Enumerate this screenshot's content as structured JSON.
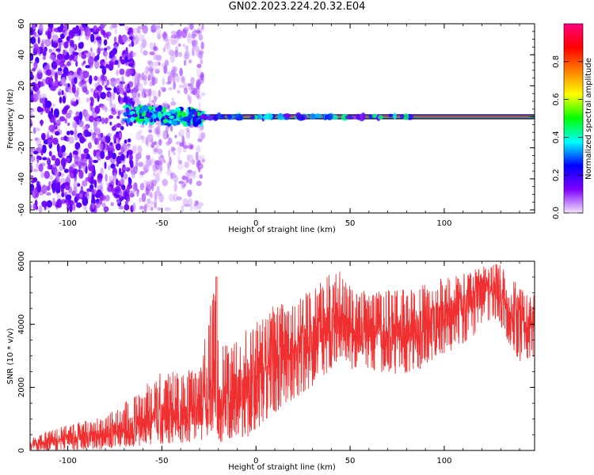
{
  "title": "GN02.2023.224.20.32.E04",
  "colors": {
    "snr_line": "#f03030",
    "colorbar_stops": [
      "#f2e6fb",
      "#7f00ff",
      "#0000ff",
      "#00ffff",
      "#00ff00",
      "#ffff00",
      "#ff8000",
      "#ff0000",
      "#ff0080"
    ]
  },
  "chart_data": [
    {
      "type": "heatmap",
      "title": "GN02.2023.224.20.32.E04",
      "xlabel": "Height of straight line (km)",
      "ylabel": "Frequency (Hz)",
      "xlim": [
        -120,
        148
      ],
      "ylim": [
        -62,
        60
      ],
      "xticks": [
        -100,
        -50,
        0,
        50,
        100
      ],
      "yticks": [
        60,
        40,
        20,
        0,
        -20,
        -40,
        -60
      ],
      "colorbar": {
        "label": "Normalized spectral amplitude",
        "ticks": [
          0.0,
          0.2,
          0.4,
          0.6,
          0.8
        ],
        "tick_labels": [
          "0.0",
          "0.2",
          "0.4",
          "0.6",
          "0.8"
        ],
        "range": [
          0,
          1
        ]
      },
      "features": [
        {
          "x": [
            -120,
            -65
          ],
          "freq_spread": 60,
          "amplitude": 0.12
        },
        {
          "x": [
            -65,
            -28
          ],
          "freq_spread": 60,
          "amplitude": 0.06
        },
        {
          "x": [
            -70,
            -28
          ],
          "center_freq": 2,
          "amplitude": 0.25
        },
        {
          "x": [
            -28,
            148
          ],
          "center_freq": 0,
          "amplitude": 0.95
        }
      ]
    },
    {
      "type": "line",
      "xlabel": "Height of straight line (km)",
      "ylabel": "SNR (10 * v/v)",
      "xlim": [
        -120,
        148
      ],
      "ylim": [
        0,
        6000
      ],
      "xticks": [
        -100,
        -50,
        0,
        50,
        100
      ],
      "yticks": [
        0,
        2000,
        4000,
        6000
      ],
      "series": [
        {
          "x": [
            -120,
            -100,
            -80,
            -70,
            -60,
            -50,
            -40,
            -30,
            -22,
            -20,
            -10,
            0,
            10,
            20,
            30,
            40,
            45,
            50,
            60,
            70,
            80,
            90,
            100,
            110,
            120,
            128,
            135,
            140,
            148
          ],
          "y_mean": [
            200,
            350,
            500,
            650,
            800,
            1000,
            1100,
            1250,
            2000,
            1300,
            1800,
            2500,
            2900,
            3200,
            3600,
            4000,
            4300,
            3700,
            3600,
            3800,
            3700,
            3900,
            4200,
            4600,
            5000,
            5300,
            4500,
            4100,
            4200
          ],
          "y_max": [
            450,
            800,
            1100,
            1500,
            2000,
            2500,
            2600,
            2500,
            5500,
            3300,
            3700,
            4200,
            4600,
            4800,
            5200,
            5600,
            5700,
            5200,
            5000,
            5100,
            5100,
            5300,
            5500,
            5600,
            5800,
            6000,
            5500,
            5200,
            5100
          ],
          "y_min": [
            0,
            0,
            50,
            100,
            150,
            200,
            250,
            300,
            600,
            150,
            250,
            600,
            1100,
            1600,
            2000,
            2600,
            2900,
            2600,
            2400,
            2500,
            2300,
            2600,
            3000,
            3400,
            3800,
            4200,
            3300,
            2800,
            3000
          ]
        }
      ]
    }
  ]
}
